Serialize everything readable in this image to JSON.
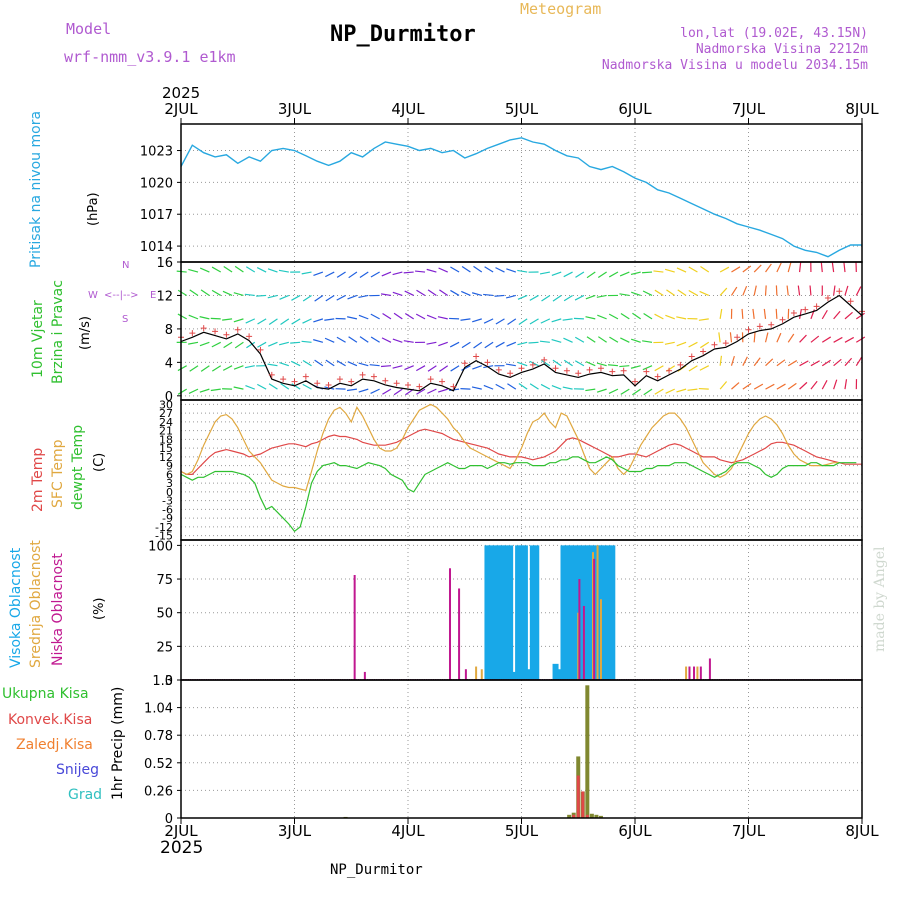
{
  "header": {
    "model_label": "Model",
    "model_name": "wrf-nmm_v3.9.1 e1km",
    "meteogram": "Meteogram",
    "station": "NP_Durmitor",
    "lonlat": "lon,lat (19.02E, 43.15N)",
    "altitude": "Nadmorska Visina 2212m",
    "model_altitude": "Nadmorska Visina u modelu 2034.15m",
    "year_top": "2025",
    "year_bottom": "2025",
    "footer": "NP_Durmitor",
    "credit": "made by Angel"
  },
  "x_axis": {
    "ticks": [
      "2JUL",
      "3JUL",
      "4JUL",
      "5JUL",
      "6JUL",
      "7JUL",
      "8JUL"
    ]
  },
  "colors": {
    "pressure": "#28a8e0",
    "temp2m": "#e04848",
    "sfc": "#e0a840",
    "dewpt": "#30c030",
    "high_cloud": "#18a8e8",
    "mid_cloud": "#e0a840",
    "low_cloud": "#c01890",
    "total_precip": "#30c030",
    "convective": "#e04848",
    "frozen": "#f08030",
    "snow": "#4848d8",
    "hail": "#30c0c0"
  },
  "chart_data": [
    {
      "type": "line",
      "name": "pressure",
      "ylabel": "Pritisak na nivou mora",
      "unit": "(hPa)",
      "ylim": [
        1012.5,
        1025.5
      ],
      "yticks": [
        "1014",
        "1017",
        "1020",
        "1023"
      ],
      "x_days": [
        0,
        0.1,
        0.2,
        0.3,
        0.4,
        0.5,
        0.6,
        0.7,
        0.8,
        0.9,
        1,
        1.1,
        1.2,
        1.3,
        1.4,
        1.5,
        1.6,
        1.7,
        1.8,
        1.9,
        2,
        2.1,
        2.2,
        2.3,
        2.4,
        2.5,
        2.6,
        2.7,
        2.8,
        2.9,
        3,
        3.1,
        3.2,
        3.3,
        3.4,
        3.5,
        3.6,
        3.7,
        3.8,
        3.9,
        4,
        4.1,
        4.2,
        4.3,
        4.4,
        4.5,
        4.6,
        4.7,
        4.8,
        4.9,
        5,
        5.1,
        5.2,
        5.3,
        5.4,
        5.5,
        5.6,
        5.7,
        5.8,
        5.9,
        6
      ],
      "values": [
        1021.5,
        1023.5,
        1022.8,
        1022.4,
        1022.6,
        1021.8,
        1022.4,
        1022.0,
        1023.0,
        1023.2,
        1023.0,
        1022.5,
        1022.0,
        1021.6,
        1022.0,
        1022.8,
        1022.4,
        1023.2,
        1023.8,
        1023.6,
        1023.4,
        1023.0,
        1023.2,
        1022.8,
        1023.0,
        1022.3,
        1022.7,
        1023.2,
        1023.6,
        1024.0,
        1024.2,
        1023.8,
        1023.6,
        1023.0,
        1022.5,
        1022.3,
        1021.5,
        1021.2,
        1021.5,
        1021.0,
        1020.4,
        1020.0,
        1019.3,
        1019.0,
        1018.5,
        1018.0,
        1017.5,
        1017.0,
        1016.6,
        1016.1,
        1015.8,
        1015.5,
        1015.1,
        1014.7,
        1014.0,
        1013.6,
        1013.4,
        1013.0,
        1013.6,
        1014.1,
        1014.1
      ]
    },
    {
      "type": "line",
      "name": "wind",
      "ylabel1": "10m Vjetar",
      "ylabel2": "Brzina i Pravac",
      "unit": "(m/s)",
      "ylim": [
        -0.5,
        16
      ],
      "yticks": [
        "0",
        "4",
        "8",
        "12",
        "16"
      ],
      "compass": [
        "W",
        "<--|-->",
        "E",
        "S",
        "N"
      ],
      "x_days": [
        0,
        0.1,
        0.2,
        0.3,
        0.4,
        0.5,
        0.6,
        0.7,
        0.8,
        0.9,
        1,
        1.1,
        1.2,
        1.3,
        1.4,
        1.5,
        1.6,
        1.7,
        1.8,
        1.9,
        2,
        2.1,
        2.2,
        2.3,
        2.4,
        2.5,
        2.6,
        2.7,
        2.8,
        2.9,
        3,
        3.1,
        3.2,
        3.3,
        3.4,
        3.5,
        3.6,
        3.7,
        3.8,
        3.9,
        4,
        4.1,
        4.2,
        4.3,
        4.4,
        4.5,
        4.6,
        4.7,
        4.8,
        4.9,
        5,
        5.1,
        5.2,
        5.3,
        5.4,
        5.5,
        5.6,
        5.7,
        5.8,
        5.9,
        6
      ],
      "values": [
        6.5,
        7.0,
        7.6,
        7.2,
        6.8,
        7.4,
        6.6,
        5.0,
        2.0,
        1.5,
        1.2,
        1.8,
        1.0,
        0.8,
        1.5,
        1.2,
        2.0,
        1.8,
        1.3,
        1.0,
        0.8,
        0.6,
        1.5,
        1.2,
        0.6,
        3.4,
        4.2,
        3.5,
        2.6,
        2.2,
        2.8,
        3.2,
        3.8,
        2.8,
        2.5,
        2.2,
        2.6,
        2.8,
        2.4,
        2.5,
        1.2,
        2.4,
        1.8,
        2.5,
        3.2,
        4.2,
        4.8,
        5.6,
        5.8,
        6.5,
        7.4,
        7.8,
        8.0,
        8.6,
        9.4,
        9.8,
        10.2,
        11.2,
        12.0,
        10.8,
        9.6
      ]
    },
    {
      "type": "line",
      "name": "temperature",
      "ylabel1": "2m Temp",
      "ylabel2": "SFC Temp",
      "ylabel3": "dewpt Temp",
      "unit": "(C)",
      "ylim": [
        -16.5,
        31.5
      ],
      "yticks": [
        "-15",
        "-12",
        "-9",
        "-6",
        "-3",
        "0",
        "3",
        "6",
        "9",
        "12",
        "15",
        "18",
        "21",
        "24",
        "27",
        "30"
      ],
      "x_days": [
        0,
        0.05,
        0.1,
        0.15,
        0.2,
        0.25,
        0.3,
        0.35,
        0.4,
        0.45,
        0.5,
        0.55,
        0.6,
        0.65,
        0.7,
        0.75,
        0.8,
        0.85,
        0.9,
        0.95,
        1,
        1.05,
        1.1,
        1.15,
        1.2,
        1.25,
        1.3,
        1.35,
        1.4,
        1.45,
        1.5,
        1.55,
        1.6,
        1.65,
        1.7,
        1.75,
        1.8,
        1.85,
        1.9,
        1.95,
        2,
        2.05,
        2.1,
        2.15,
        2.2,
        2.25,
        2.3,
        2.35,
        2.4,
        2.45,
        2.5,
        2.55,
        2.6,
        2.65,
        2.7,
        2.75,
        2.8,
        2.85,
        2.9,
        2.95,
        3,
        3.05,
        3.1,
        3.15,
        3.2,
        3.25,
        3.3,
        3.35,
        3.4,
        3.45,
        3.5,
        3.55,
        3.6,
        3.65,
        3.7,
        3.75,
        3.8,
        3.85,
        3.9,
        3.95,
        4,
        4.05,
        4.1,
        4.15,
        4.2,
        4.25,
        4.3,
        4.35,
        4.4,
        4.45,
        4.5,
        4.55,
        4.6,
        4.65,
        4.7,
        4.75,
        4.8,
        4.85,
        4.9,
        4.95,
        5,
        5.05,
        5.1,
        5.15,
        5.2,
        5.25,
        5.3,
        5.35,
        5.4,
        5.45,
        5.5,
        5.55,
        5.6,
        5.65,
        5.7,
        5.75,
        5.8,
        5.85,
        5.9,
        5.95,
        6
      ],
      "series": [
        {
          "name": "2m Temp",
          "color_key": "temp2m",
          "values": [
            7,
            6,
            6,
            8,
            10,
            12,
            13.5,
            14,
            14.5,
            14,
            13.5,
            13,
            12,
            12.5,
            13,
            14,
            15,
            15.5,
            16,
            16.5,
            16.5,
            16,
            15.5,
            16.5,
            17,
            18,
            19,
            19.5,
            19,
            19,
            18.5,
            18,
            17,
            16.5,
            16,
            16,
            16,
            16.5,
            17,
            18,
            19,
            20,
            21,
            21.5,
            21,
            20.5,
            20,
            19,
            18,
            17.5,
            17,
            16.5,
            16,
            15.5,
            15,
            14,
            13,
            12.5,
            12,
            12,
            12,
            11.5,
            11,
            11.5,
            12,
            13,
            14,
            16,
            18,
            18.5,
            18,
            17,
            16,
            15,
            14,
            13,
            12,
            12,
            12.5,
            13,
            13,
            12.5,
            12,
            13,
            14,
            15,
            16,
            16.5,
            16,
            15,
            14,
            13,
            12,
            12,
            12,
            11,
            10.5,
            10,
            10.5,
            11,
            12,
            13,
            14,
            15,
            16.5,
            17,
            17,
            16.5,
            16,
            15,
            14,
            13,
            12,
            11.5,
            11,
            10.5,
            10,
            9.5,
            9.5,
            9.5,
            9.5
          ]
        },
        {
          "name": "SFC Temp",
          "color_key": "sfc",
          "values": [
            7,
            6,
            7,
            11,
            16,
            20,
            24,
            26,
            26.5,
            25,
            22,
            18,
            14,
            12,
            10,
            7,
            4,
            3,
            2,
            1.5,
            1.5,
            1,
            0.5,
            7,
            14,
            20,
            25,
            28,
            29,
            27,
            24,
            29,
            26,
            22,
            18,
            15,
            14,
            14,
            15,
            18,
            22,
            25,
            28,
            29,
            30,
            29,
            27,
            25,
            22,
            20,
            17,
            15,
            14,
            13,
            12,
            11,
            10,
            9,
            8,
            11,
            15,
            20,
            24,
            25,
            27,
            24,
            22,
            27,
            26,
            22,
            18,
            13,
            8,
            6,
            8,
            10,
            12,
            8,
            6,
            8,
            12,
            16,
            19,
            22,
            24,
            26,
            27,
            27,
            25,
            22,
            18,
            14,
            10,
            8,
            6,
            5,
            6,
            8,
            12,
            16,
            20,
            23,
            25,
            26,
            25,
            23,
            20,
            16,
            13,
            11,
            10,
            9,
            9,
            9,
            9.5,
            10,
            10
          ]
        },
        {
          "name": "dewpt Temp",
          "color_key": "dewpt",
          "values": [
            6,
            5,
            4,
            5,
            5,
            6,
            7,
            7,
            7,
            7,
            6.5,
            6,
            5,
            3,
            -2,
            -6,
            -5,
            -7,
            -9,
            -11,
            -13.5,
            -12,
            -5,
            3,
            7,
            9,
            9.5,
            10,
            9,
            9,
            8.5,
            8,
            9,
            10,
            9.5,
            9,
            8,
            6,
            5,
            4,
            1,
            0,
            3,
            6,
            7,
            8,
            9,
            10,
            9,
            8,
            8,
            9,
            9,
            9,
            8,
            9,
            10,
            10,
            9.5,
            10,
            10,
            10,
            9,
            9,
            9,
            10,
            10,
            11,
            11,
            12,
            12,
            11,
            10,
            10,
            11,
            12,
            11,
            9,
            8,
            7,
            7,
            7,
            8,
            8,
            9,
            9,
            9,
            10,
            10,
            10,
            9,
            8,
            7,
            6,
            5,
            6,
            7,
            9,
            10,
            10,
            10,
            9,
            8,
            6,
            5,
            6,
            8,
            9,
            9,
            9,
            9,
            10,
            10,
            9,
            9,
            9,
            10,
            10,
            10,
            10
          ]
        }
      ]
    },
    {
      "type": "bar",
      "name": "clouds",
      "ylabel1": "Visoka Oblacnost",
      "ylabel2": "Srednja Oblacnost",
      "ylabel3": "Niska Oblacnost",
      "unit": "(%)",
      "ylim": [
        0,
        104
      ],
      "yticks": [
        "0",
        "25",
        "50",
        "75",
        "100"
      ],
      "series": [
        {
          "name": "Visoka Oblacnost",
          "color_key": "high_cloud",
          "x_days": [
            2.7,
            2.73,
            2.77,
            2.8,
            2.83,
            2.86,
            2.9,
            2.93,
            2.97,
            3.0,
            3.03,
            3.07,
            3.1,
            3.13,
            3.3,
            3.33,
            3.37,
            3.4,
            3.43,
            3.46,
            3.5,
            3.53,
            3.57,
            3.6,
            3.63,
            3.67,
            3.7,
            3.73,
            3.77,
            3.8
          ],
          "values": [
            100,
            100,
            100,
            100,
            100,
            100,
            100,
            6,
            100,
            100,
            100,
            8,
            100,
            100,
            12,
            8,
            100,
            100,
            100,
            100,
            100,
            100,
            100,
            100,
            100,
            100,
            100,
            100,
            100,
            100
          ]
        },
        {
          "name": "Srednja Oblacnost",
          "color_key": "mid_cloud",
          "x_days": [
            2.6,
            2.65,
            3.5,
            3.55,
            3.63,
            3.67,
            3.7,
            4.45,
            4.48,
            4.52,
            4.55
          ],
          "values": [
            10,
            8,
            50,
            45,
            95,
            100,
            60,
            10,
            10,
            8,
            10
          ]
        },
        {
          "name": "Niska Oblacnost",
          "color_key": "low_cloud",
          "x_days": [
            1.53,
            1.62,
            2.37,
            2.45,
            2.51,
            3.51,
            3.55,
            3.64,
            4.48,
            4.52,
            4.58,
            4.66
          ],
          "values": [
            78,
            6,
            83,
            68,
            8,
            75,
            55,
            90,
            10,
            10,
            10,
            16
          ]
        }
      ]
    },
    {
      "type": "bar",
      "name": "precipitation",
      "ylabel": "1hr Precip (mm)",
      "ylim": [
        0,
        1.3
      ],
      "yticks": [
        "0",
        "0.26",
        "0.52",
        "0.78",
        "1.04",
        "1.3"
      ],
      "legend": [
        "Ukupna Kisa",
        "Konvek.Kisa",
        "Zaledj.Kisa",
        "Snijeg",
        "Grad"
      ],
      "series": [
        {
          "name": "Ukupna Kisa",
          "color_key": "total_precip",
          "x_days": [
            1.45,
            3.42,
            3.46,
            3.5,
            3.54,
            3.58,
            3.62,
            3.66,
            3.7
          ],
          "values": [
            0.01,
            0.03,
            0.05,
            0.58,
            0.25,
            1.25,
            0.04,
            0.03,
            0.02
          ]
        },
        {
          "name": "Konvek.Kisa",
          "color_key": "convective",
          "x_days": [
            3.46,
            3.5,
            3.54,
            3.58
          ],
          "values": [
            0.03,
            0.4,
            0.25,
            0.03
          ]
        }
      ]
    }
  ]
}
